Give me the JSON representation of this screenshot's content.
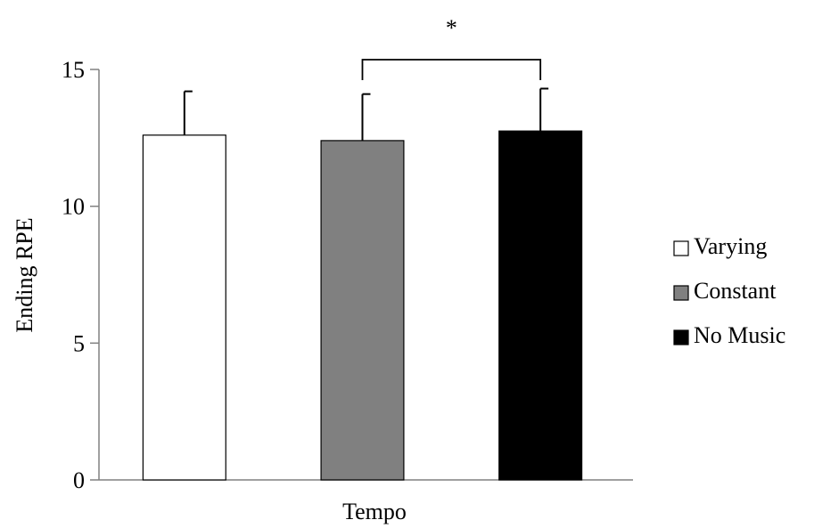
{
  "chart_data": {
    "type": "bar",
    "title": "",
    "xlabel": "Tempo",
    "ylabel": "Ending RPE",
    "ylim": [
      0,
      15
    ],
    "yticks": [
      0,
      5,
      10,
      15
    ],
    "grid": false,
    "legend_position": "right",
    "series": [
      {
        "name": "Varying",
        "value": 12.6,
        "error": 1.6,
        "color": "#ffffff"
      },
      {
        "name": "Constant",
        "value": 12.4,
        "error": 1.7,
        "color": "#808080"
      },
      {
        "name": "No Music",
        "value": 12.75,
        "error": 1.55,
        "color": "#000000"
      }
    ],
    "annotations": [
      {
        "text": "*",
        "between": [
          "Constant",
          "No Music"
        ]
      }
    ]
  }
}
